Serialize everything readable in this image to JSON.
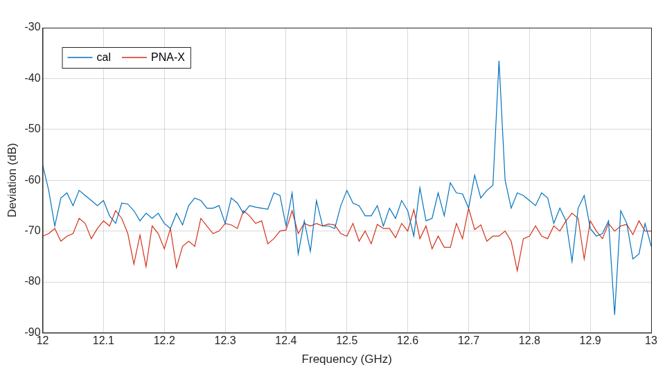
{
  "chart_data": {
    "type": "line",
    "x_label": "Frequency (GHz)",
    "y_label": "Deviation (dB)",
    "x": [
      12,
      12.01,
      12.02,
      12.03,
      12.04,
      12.05,
      12.06,
      12.07,
      12.08,
      12.09,
      12.1,
      12.11,
      12.12,
      12.13,
      12.14,
      12.15,
      12.16,
      12.17,
      12.18,
      12.19,
      12.2,
      12.21,
      12.22,
      12.23,
      12.24,
      12.25,
      12.26,
      12.27,
      12.28,
      12.29,
      12.3,
      12.31,
      12.32,
      12.33,
      12.34,
      12.35,
      12.36,
      12.37,
      12.38,
      12.39,
      12.4,
      12.41,
      12.42,
      12.43,
      12.44,
      12.45,
      12.46,
      12.47,
      12.48,
      12.49,
      12.5,
      12.51,
      12.52,
      12.53,
      12.54,
      12.55,
      12.56,
      12.57,
      12.58,
      12.59,
      12.6,
      12.61,
      12.62,
      12.63,
      12.64,
      12.65,
      12.66,
      12.67,
      12.68,
      12.69,
      12.7,
      12.71,
      12.72,
      12.73,
      12.74,
      12.75,
      12.76,
      12.77,
      12.78,
      12.79,
      12.8,
      12.81,
      12.82,
      12.83,
      12.84,
      12.85,
      12.86,
      12.87,
      12.88,
      12.89,
      12.9,
      12.91,
      12.92,
      12.93,
      12.94,
      12.95,
      12.96,
      12.97,
      12.98,
      12.99,
      13
    ],
    "series": [
      {
        "name": "cal",
        "color": "#0072bd",
        "values": [
          -57,
          -62,
          -69,
          -63.5,
          -62.5,
          -65,
          -62,
          -63,
          -64,
          -65,
          -64,
          -67,
          -68.5,
          -64.5,
          -64.7,
          -66,
          -68,
          -66.5,
          -67.5,
          -66.5,
          -68.5,
          -69.5,
          -66.5,
          -68.8,
          -65,
          -63.5,
          -64,
          -65.5,
          -65.5,
          -65,
          -68.5,
          -63.5,
          -64.5,
          -66.5,
          -65,
          -65.3,
          -65.5,
          -65.7,
          -62.5,
          -63,
          -69,
          -62.5,
          -74.5,
          -68,
          -74,
          -64,
          -69,
          -69,
          -69.5,
          -65,
          -62,
          -64.5,
          -65,
          -67,
          -67,
          -65,
          -69,
          -65.5,
          -67.5,
          -64,
          -66,
          -71,
          -61.5,
          -68,
          -67.5,
          -62.5,
          -67,
          -60.5,
          -62.5,
          -62.7,
          -65.5,
          -59,
          -63.5,
          -62,
          -61,
          -36.5,
          -60,
          -65.5,
          -62.5,
          -63,
          -64,
          -65,
          -62.5,
          -63.5,
          -68.5,
          -65.5,
          -68,
          -76,
          -65.5,
          -63,
          -69.5,
          -71,
          -70.5,
          -68,
          -86.5,
          -66,
          -68.5,
          -75.5,
          -74.5,
          -68.5,
          -73
        ]
      },
      {
        "name": "PNA-X",
        "color": "#d4301a",
        "values": [
          -71,
          -70.5,
          -69.5,
          -72,
          -71,
          -70.5,
          -67.5,
          -68.5,
          -71.5,
          -69.5,
          -68,
          -69,
          -66,
          -67.5,
          -70.5,
          -76.5,
          -70.8,
          -77,
          -69,
          -70.5,
          -73.5,
          -69.5,
          -77.2,
          -73,
          -72,
          -73,
          -67.5,
          -69,
          -70.5,
          -70,
          -68.5,
          -68.8,
          -69.5,
          -66,
          -67,
          -68.5,
          -68,
          -72.5,
          -71.5,
          -70,
          -69.8,
          -66,
          -70.5,
          -68.5,
          -69,
          -68.5,
          -69,
          -68.6,
          -68.8,
          -70.5,
          -71,
          -68.5,
          -72,
          -70,
          -72.5,
          -68.7,
          -69.5,
          -69.5,
          -71.3,
          -68.5,
          -70,
          -65.8,
          -71.5,
          -69,
          -73.5,
          -71,
          -73.2,
          -73.2,
          -68.5,
          -71.5,
          -65.5,
          -69.7,
          -68.8,
          -72,
          -71,
          -71,
          -70,
          -72,
          -77.8,
          -71.5,
          -71,
          -69,
          -71,
          -71.5,
          -69,
          -70,
          -68,
          -66.5,
          -67.5,
          -75.5,
          -68,
          -70,
          -71.5,
          -68.5,
          -70,
          -69,
          -68.7,
          -70.7,
          -68,
          -70,
          -70
        ]
      }
    ],
    "xlim": [
      12,
      13
    ],
    "xticks": [
      12,
      12.1,
      12.2,
      12.3,
      12.4,
      12.5,
      12.6,
      12.7,
      12.8,
      12.9,
      13
    ],
    "ylim": [
      -90,
      -30
    ],
    "yticks": [
      -90,
      -80,
      -70,
      -60,
      -50,
      -40,
      -30
    ],
    "grid": true,
    "legend": "upper left"
  }
}
